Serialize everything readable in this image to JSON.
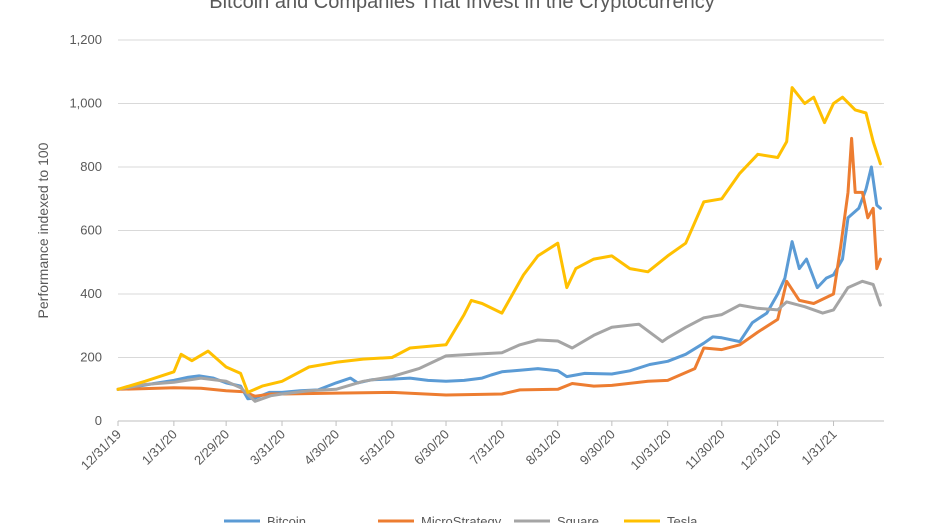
{
  "chart_data": {
    "type": "line",
    "title": "Bitcoin and Companies That Invest in the Cryptocurrency",
    "ylabel": "Performance indexed to 100",
    "xlabel": "",
    "ylim": [
      0,
      1200
    ],
    "yticks": [
      0,
      200,
      400,
      600,
      800,
      1000,
      1200
    ],
    "ytick_labels": [
      "0",
      "200",
      "400",
      "600",
      "800",
      "1,000",
      "1,200"
    ],
    "xlim": [
      "2019-12-31",
      "2021-02-28"
    ],
    "xticks": [
      "2019-12-31",
      "2020-01-31",
      "2020-02-29",
      "2020-03-31",
      "2020-04-30",
      "2020-05-31",
      "2020-06-30",
      "2020-07-31",
      "2020-08-31",
      "2020-09-30",
      "2020-10-31",
      "2020-11-30",
      "2020-12-31",
      "2021-01-31"
    ],
    "xtick_labels": [
      "12/31/19",
      "1/31/20",
      "2/29/20",
      "3/31/20",
      "4/30/20",
      "5/31/20",
      "6/30/20",
      "7/31/20",
      "8/31/20",
      "9/30/20",
      "10/31/20",
      "11/30/20",
      "12/31/20",
      "1/31/21"
    ],
    "grid": "horizontal",
    "legend_position": "bottom",
    "series": [
      {
        "name": "Bitcoin",
        "color": "#5B9BD5",
        "points": [
          [
            "2019-12-31",
            100
          ],
          [
            "2020-01-10",
            108
          ],
          [
            "2020-01-20",
            118
          ],
          [
            "2020-01-31",
            128
          ],
          [
            "2020-02-08",
            138
          ],
          [
            "2020-02-14",
            142
          ],
          [
            "2020-02-22",
            135
          ],
          [
            "2020-02-29",
            120
          ],
          [
            "2020-03-08",
            110
          ],
          [
            "2020-03-12",
            70
          ],
          [
            "2020-03-16",
            72
          ],
          [
            "2020-03-24",
            90
          ],
          [
            "2020-03-31",
            90
          ],
          [
            "2020-04-10",
            95
          ],
          [
            "2020-04-20",
            98
          ],
          [
            "2020-04-30",
            120
          ],
          [
            "2020-05-08",
            135
          ],
          [
            "2020-05-12",
            120
          ],
          [
            "2020-05-20",
            130
          ],
          [
            "2020-05-31",
            132
          ],
          [
            "2020-06-10",
            135
          ],
          [
            "2020-06-20",
            128
          ],
          [
            "2020-06-30",
            125
          ],
          [
            "2020-07-10",
            128
          ],
          [
            "2020-07-20",
            135
          ],
          [
            "2020-07-25",
            145
          ],
          [
            "2020-07-31",
            155
          ],
          [
            "2020-08-10",
            160
          ],
          [
            "2020-08-20",
            165
          ],
          [
            "2020-08-31",
            158
          ],
          [
            "2020-09-05",
            140
          ],
          [
            "2020-09-15",
            150
          ],
          [
            "2020-09-30",
            148
          ],
          [
            "2020-10-10",
            158
          ],
          [
            "2020-10-21",
            178
          ],
          [
            "2020-10-31",
            188
          ],
          [
            "2020-11-10",
            210
          ],
          [
            "2020-11-20",
            245
          ],
          [
            "2020-11-25",
            265
          ],
          [
            "2020-11-30",
            262
          ],
          [
            "2020-12-10",
            250
          ],
          [
            "2020-12-17",
            310
          ],
          [
            "2020-12-25",
            340
          ],
          [
            "2020-12-31",
            400
          ],
          [
            "2021-01-04",
            450
          ],
          [
            "2021-01-08",
            565
          ],
          [
            "2021-01-12",
            480
          ],
          [
            "2021-01-16",
            510
          ],
          [
            "2021-01-22",
            420
          ],
          [
            "2021-01-27",
            450
          ],
          [
            "2021-01-31",
            460
          ],
          [
            "2021-02-05",
            510
          ],
          [
            "2021-02-08",
            640
          ],
          [
            "2021-02-14",
            670
          ],
          [
            "2021-02-18",
            730
          ],
          [
            "2021-02-21",
            800
          ],
          [
            "2021-02-24",
            680
          ],
          [
            "2021-02-26",
            670
          ]
        ]
      },
      {
        "name": "MicroStrategy",
        "color": "#ED7D31",
        "points": [
          [
            "2019-12-31",
            100
          ],
          [
            "2020-01-15",
            102
          ],
          [
            "2020-01-31",
            105
          ],
          [
            "2020-02-15",
            103
          ],
          [
            "2020-02-29",
            95
          ],
          [
            "2020-03-10",
            92
          ],
          [
            "2020-03-16",
            78
          ],
          [
            "2020-03-25",
            85
          ],
          [
            "2020-03-31",
            85
          ],
          [
            "2020-04-30",
            88
          ],
          [
            "2020-05-31",
            90
          ],
          [
            "2020-06-30",
            82
          ],
          [
            "2020-07-31",
            85
          ],
          [
            "2020-08-10",
            98
          ],
          [
            "2020-08-31",
            100
          ],
          [
            "2020-09-08",
            118
          ],
          [
            "2020-09-20",
            110
          ],
          [
            "2020-09-30",
            112
          ],
          [
            "2020-10-20",
            125
          ],
          [
            "2020-10-31",
            128
          ],
          [
            "2020-11-15",
            165
          ],
          [
            "2020-11-20",
            230
          ],
          [
            "2020-11-30",
            225
          ],
          [
            "2020-12-10",
            240
          ],
          [
            "2020-12-20",
            280
          ],
          [
            "2020-12-31",
            320
          ],
          [
            "2021-01-05",
            440
          ],
          [
            "2021-01-12",
            380
          ],
          [
            "2021-01-20",
            370
          ],
          [
            "2021-01-31",
            400
          ],
          [
            "2021-02-04",
            550
          ],
          [
            "2021-02-08",
            720
          ],
          [
            "2021-02-10",
            890
          ],
          [
            "2021-02-12",
            720
          ],
          [
            "2021-02-16",
            720
          ],
          [
            "2021-02-19",
            640
          ],
          [
            "2021-02-22",
            670
          ],
          [
            "2021-02-24",
            480
          ],
          [
            "2021-02-26",
            510
          ]
        ]
      },
      {
        "name": "Square",
        "color": "#A5A5A5",
        "points": [
          [
            "2019-12-31",
            100
          ],
          [
            "2020-01-15",
            115
          ],
          [
            "2020-01-31",
            122
          ],
          [
            "2020-02-15",
            135
          ],
          [
            "2020-02-29",
            125
          ],
          [
            "2020-03-08",
            105
          ],
          [
            "2020-03-16",
            62
          ],
          [
            "2020-03-25",
            80
          ],
          [
            "2020-03-31",
            85
          ],
          [
            "2020-04-15",
            95
          ],
          [
            "2020-04-30",
            100
          ],
          [
            "2020-05-15",
            125
          ],
          [
            "2020-05-31",
            140
          ],
          [
            "2020-06-15",
            165
          ],
          [
            "2020-06-30",
            205
          ],
          [
            "2020-07-15",
            210
          ],
          [
            "2020-07-31",
            215
          ],
          [
            "2020-08-10",
            240
          ],
          [
            "2020-08-20",
            255
          ],
          [
            "2020-08-31",
            252
          ],
          [
            "2020-09-08",
            230
          ],
          [
            "2020-09-20",
            270
          ],
          [
            "2020-09-30",
            295
          ],
          [
            "2020-10-15",
            305
          ],
          [
            "2020-10-28",
            250
          ],
          [
            "2020-10-31",
            262
          ],
          [
            "2020-11-10",
            295
          ],
          [
            "2020-11-20",
            325
          ],
          [
            "2020-11-30",
            335
          ],
          [
            "2020-12-10",
            365
          ],
          [
            "2020-12-20",
            355
          ],
          [
            "2020-12-31",
            350
          ],
          [
            "2021-01-05",
            375
          ],
          [
            "2021-01-15",
            360
          ],
          [
            "2021-01-25",
            340
          ],
          [
            "2021-01-31",
            350
          ],
          [
            "2021-02-08",
            420
          ],
          [
            "2021-02-16",
            440
          ],
          [
            "2021-02-22",
            430
          ],
          [
            "2021-02-26",
            365
          ]
        ]
      },
      {
        "name": "Tesla",
        "color": "#FFC000",
        "points": [
          [
            "2019-12-31",
            100
          ],
          [
            "2020-01-15",
            125
          ],
          [
            "2020-01-31",
            155
          ],
          [
            "2020-02-04",
            210
          ],
          [
            "2020-02-10",
            190
          ],
          [
            "2020-02-19",
            220
          ],
          [
            "2020-02-29",
            170
          ],
          [
            "2020-03-08",
            150
          ],
          [
            "2020-03-12",
            90
          ],
          [
            "2020-03-20",
            110
          ],
          [
            "2020-03-31",
            125
          ],
          [
            "2020-04-15",
            170
          ],
          [
            "2020-04-30",
            185
          ],
          [
            "2020-05-15",
            195
          ],
          [
            "2020-05-31",
            200
          ],
          [
            "2020-06-10",
            230
          ],
          [
            "2020-06-30",
            240
          ],
          [
            "2020-07-10",
            335
          ],
          [
            "2020-07-14",
            380
          ],
          [
            "2020-07-20",
            370
          ],
          [
            "2020-07-31",
            340
          ],
          [
            "2020-08-12",
            460
          ],
          [
            "2020-08-20",
            520
          ],
          [
            "2020-08-31",
            560
          ],
          [
            "2020-09-05",
            420
          ],
          [
            "2020-09-10",
            480
          ],
          [
            "2020-09-20",
            510
          ],
          [
            "2020-09-30",
            520
          ],
          [
            "2020-10-10",
            480
          ],
          [
            "2020-10-20",
            470
          ],
          [
            "2020-10-31",
            520
          ],
          [
            "2020-11-10",
            560
          ],
          [
            "2020-11-20",
            690
          ],
          [
            "2020-11-30",
            700
          ],
          [
            "2020-12-10",
            780
          ],
          [
            "2020-12-20",
            840
          ],
          [
            "2020-12-31",
            830
          ],
          [
            "2021-01-05",
            880
          ],
          [
            "2021-01-08",
            1050
          ],
          [
            "2021-01-15",
            1000
          ],
          [
            "2021-01-20",
            1020
          ],
          [
            "2021-01-26",
            940
          ],
          [
            "2021-01-31",
            1000
          ],
          [
            "2021-02-05",
            1020
          ],
          [
            "2021-02-12",
            980
          ],
          [
            "2021-02-18",
            970
          ],
          [
            "2021-02-22",
            880
          ],
          [
            "2021-02-26",
            810
          ]
        ]
      }
    ]
  }
}
